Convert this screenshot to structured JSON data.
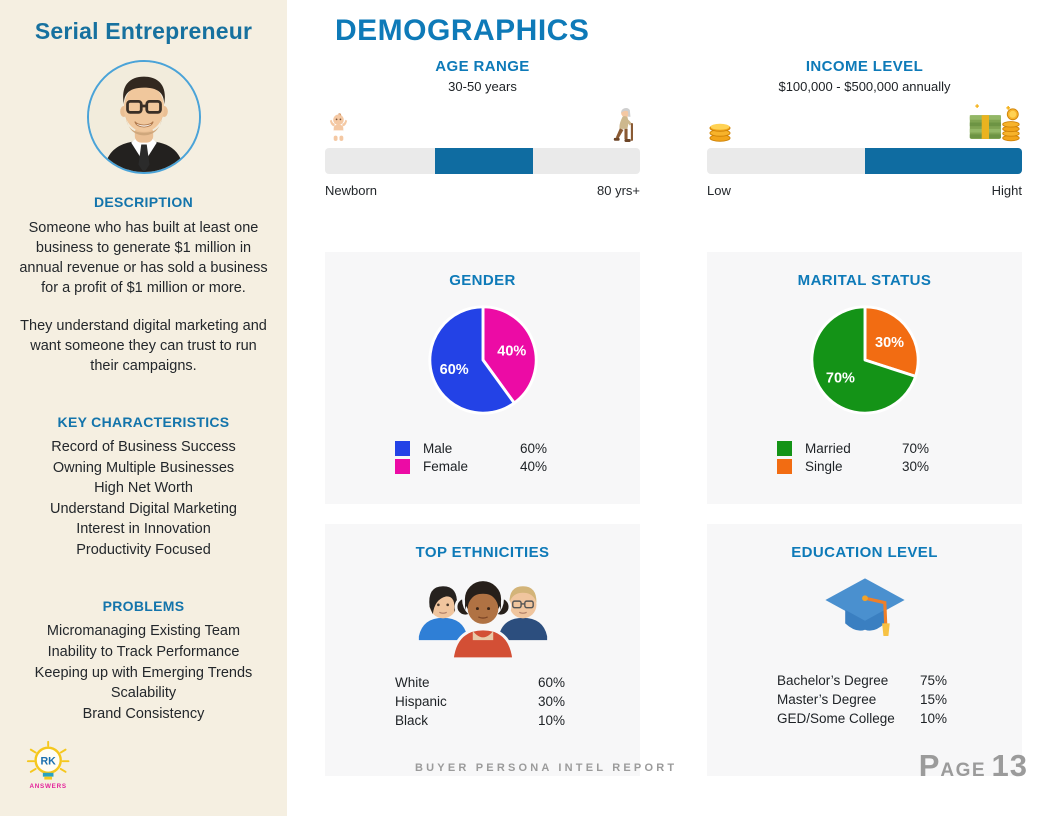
{
  "colors": {
    "accent_blue": "#0e7ab8",
    "sidebar_bg": "#f5efe1",
    "card_bg": "#f7f7f8",
    "bar_fill": "#0f6ca1",
    "bar_track": "#eaeaea"
  },
  "sidebar": {
    "title": "Serial Entrepreneur",
    "description_heading": "DESCRIPTION",
    "description_paragraphs": [
      "Someone who has built at least one business to generate $1 million in annual revenue or has sold a business for a profit of $1 million or more.",
      "They understand digital marketing and want someone they can trust to run their campaigns."
    ],
    "key_characteristics_heading": "KEY CHARACTERISTICS",
    "key_characteristics": [
      "Record of Business Success",
      "Owning Multiple Businesses",
      "High Net Worth",
      "Understand Digital Marketing",
      "Interest in Innovation",
      "Productivity Focused"
    ],
    "problems_heading": "PROBLEMS",
    "problems": [
      "Micromanaging Existing Team",
      "Inability to Track Performance",
      "Keeping up with Emerging Trends",
      "Scalability",
      "Brand Consistency"
    ],
    "logo": {
      "initials": "RK",
      "word": "ANSWERS"
    }
  },
  "main": {
    "title": "DEMOGRAPHICS",
    "age_range": {
      "heading": "AGE RANGE",
      "value": "30-50 years",
      "left_icon": "baby-icon",
      "right_icon": "elderly-person-icon",
      "left_label": "Newborn",
      "right_label": "80 yrs+",
      "bar": {
        "fill_start_pct": 35,
        "fill_end_pct": 66,
        "fill_color": "#0f6ca1",
        "track_color": "#eaeaea"
      }
    },
    "income_level": {
      "heading": "INCOME LEVEL",
      "value": "$100,000 - $500,000 annually",
      "left_icon": "coins-icon",
      "right_icon": "cash-and-coins-icon",
      "left_label": "Low",
      "right_label": "Hight",
      "bar": {
        "fill_start_pct": 50,
        "fill_end_pct": 100,
        "fill_color": "#0f6ca1",
        "track_color": "#eaeaea"
      }
    }
  },
  "chart_data": [
    {
      "type": "pie",
      "title": "GENDER",
      "legend_position": "bottom",
      "slices": [
        {
          "label": "Male",
          "value": 60,
          "display": "60%",
          "color": "#2342e6"
        },
        {
          "label": "Female",
          "value": 40,
          "display": "40%",
          "color": "#ec0ba5"
        }
      ]
    },
    {
      "type": "pie",
      "title": "MARITAL STATUS",
      "legend_position": "bottom",
      "slices": [
        {
          "label": "Married",
          "value": 70,
          "display": "70%",
          "color": "#149317"
        },
        {
          "label": "Single",
          "value": 30,
          "display": "30%",
          "color": "#f26c12"
        }
      ]
    },
    {
      "type": "table",
      "title": "TOP ETHNICITIES",
      "rows": [
        [
          "White",
          "60%"
        ],
        [
          "Hispanic",
          "30%"
        ],
        [
          "Black",
          "10%"
        ]
      ]
    },
    {
      "type": "table",
      "title": "EDUCATION LEVEL",
      "rows": [
        [
          "Bachelor’s Degree",
          "75%"
        ],
        [
          "Master’s Degree",
          "15%"
        ],
        [
          "GED/Some College",
          "10%"
        ]
      ]
    }
  ],
  "footer": {
    "report_title": "BUYER PERSONA INTEL REPORT",
    "page_label_initial": "P",
    "page_label_rest": "AGE",
    "page_number": "13"
  }
}
